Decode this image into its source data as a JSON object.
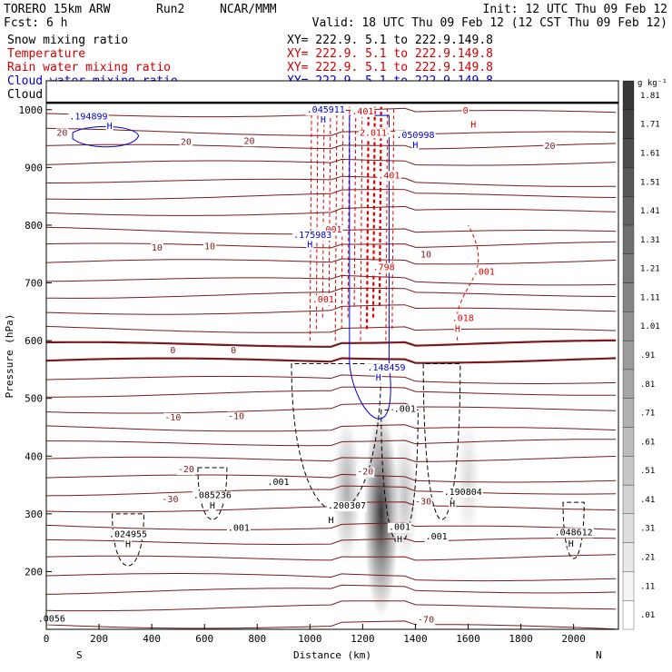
{
  "header": {
    "model": "TORERO  15km ARW",
    "run": "Run2",
    "org": "NCAR/MMM",
    "init": "Init: 12 UTC Thu 09 Feb 12",
    "fcst": "Fcst:    6 h",
    "valid": "Valid: 18 UTC Thu 09 Feb 12 (12 CST Thu 09 Feb 12)"
  },
  "fields": [
    {
      "name": "Snow mixing ratio",
      "color": "#000000"
    },
    {
      "name": "Temperature",
      "color": "#cc0000"
    },
    {
      "name": "Rain water mixing ratio",
      "color": "#cc0000"
    },
    {
      "name": "Cloud water mixing ratio",
      "color": "#0000cc"
    },
    {
      "name": "Cloud ice mixing ratio",
      "color": "#000000"
    }
  ],
  "xsec_label": "XY= 222.9.   5.1 to 222.9.149.8",
  "colorbar": {
    "unit": "g kg⁻¹",
    "labels": [
      ".01",
      ".11",
      ".21",
      ".31",
      ".41",
      ".51",
      ".61",
      ".71",
      ".81",
      ".91",
      "1.01",
      "1.11",
      "1.21",
      "1.31",
      "1.41",
      "1.51",
      "1.61",
      "1.71",
      "1.81"
    ]
  },
  "chart_data": {
    "type": "heatmap",
    "xlabel": "Distance (km)",
    "ylabel": "Pressure (hPa)",
    "xlim": [
      0,
      2170
    ],
    "ylim": [
      1050,
      100
    ],
    "x_ticks": [
      0,
      200,
      400,
      600,
      800,
      1000,
      1200,
      1400,
      1600,
      1800,
      2000
    ],
    "y_ticks": [
      200,
      300,
      400,
      500,
      600,
      700,
      800,
      900,
      1000
    ],
    "x_end_labels": {
      "left": "S",
      "right": "N"
    },
    "temperature_labels": [
      {
        "text": "-70",
        "x": 1440,
        "p": 112
      },
      {
        "text": "-30",
        "x": 470,
        "p": 320
      },
      {
        "text": "-30",
        "x": 1430,
        "p": 316
      },
      {
        "text": "-20",
        "x": 530,
        "p": 372
      },
      {
        "text": "-20",
        "x": 1210,
        "p": 368
      },
      {
        "text": "-10",
        "x": 480,
        "p": 462
      },
      {
        "text": "-10",
        "x": 720,
        "p": 464
      },
      {
        "text": "0",
        "x": 480,
        "p": 578
      },
      {
        "text": "0",
        "x": 710,
        "p": 578
      },
      {
        "text": "10",
        "x": 420,
        "p": 756
      },
      {
        "text": "10",
        "x": 620,
        "p": 758
      },
      {
        "text": "10",
        "x": 1440,
        "p": 744
      },
      {
        "text": "20",
        "x": 530,
        "p": 939
      },
      {
        "text": "20",
        "x": 770,
        "p": 941
      },
      {
        "text": "20",
        "x": 1910,
        "p": 932
      },
      {
        "text": "20",
        "x": 60,
        "p": 955
      }
    ],
    "snow_labels": [
      {
        "text": "H",
        "x": 310,
        "p": 242
      },
      {
        "text": ".024955",
        "x": 310,
        "p": 260
      },
      {
        "text": ".001",
        "x": 730,
        "p": 271
      },
      {
        "text": "H",
        "x": 630,
        "p": 309
      },
      {
        "text": ".085236",
        "x": 630,
        "p": 327
      },
      {
        "text": ".001",
        "x": 880,
        "p": 350
      },
      {
        "text": "H",
        "x": 1080,
        "p": 284
      },
      {
        "text": ".200307",
        "x": 1140,
        "p": 309
      },
      {
        "text": "H",
        "x": 1340,
        "p": 251
      },
      {
        "text": ".001",
        "x": 1340,
        "p": 272
      },
      {
        "text": ".001",
        "x": 1480,
        "p": 256
      },
      {
        "text": "H",
        "x": 1540,
        "p": 312
      },
      {
        "text": ".190804",
        "x": 1580,
        "p": 333
      },
      {
        "text": "H",
        "x": 1990,
        "p": 243
      },
      {
        "text": ".048612",
        "x": 2000,
        "p": 263
      },
      {
        "text": ".001",
        "x": 1360,
        "p": 477
      },
      {
        "text": ".0056",
        "x": 20,
        "p": 113
      }
    ],
    "rain_labels": [
      {
        "text": "H",
        "x": 1560,
        "p": 615
      },
      {
        "text": ".018",
        "x": 1580,
        "p": 634
      },
      {
        "text": ".001",
        "x": 1660,
        "p": 714
      },
      {
        "text": ".001",
        "x": 1050,
        "p": 666
      },
      {
        "text": ".001",
        "x": 1080,
        "p": 787
      },
      {
        "text": ".798",
        "x": 1280,
        "p": 722
      },
      {
        "text": ".401",
        "x": 1300,
        "p": 881
      },
      {
        "text": ".401",
        "x": 1260,
        "p": 957
      },
      {
        "text": "2.011",
        "x": 1240,
        "p": 955
      },
      {
        "text": ".401",
        "x": 1200,
        "p": 992
      },
      {
        "text": "H",
        "x": 1620,
        "p": 969
      },
      {
        "text": "0",
        "x": 1590,
        "p": 993
      }
    ],
    "cloud_water_labels": [
      {
        "text": "H",
        "x": 1260,
        "p": 531
      },
      {
        "text": ".148459",
        "x": 1290,
        "p": 548
      },
      {
        "text": "H",
        "x": 1000,
        "p": 761
      },
      {
        "text": ".175983",
        "x": 1010,
        "p": 778
      },
      {
        "text": "H",
        "x": 1400,
        "p": 934
      },
      {
        "text": ".050998",
        "x": 1400,
        "p": 951
      },
      {
        "text": "H",
        "x": 240,
        "p": 967
      },
      {
        "text": ".194899",
        "x": 160,
        "p": 983
      },
      {
        "text": "H",
        "x": 1050,
        "p": 978
      },
      {
        "text": ".045911",
        "x": 1060,
        "p": 995
      }
    ],
    "snow_shading": [
      {
        "x": 1270,
        "p": 300,
        "max": 1.81
      },
      {
        "x": 1140,
        "p": 340,
        "max": 0.71
      },
      {
        "x": 1360,
        "p": 330,
        "max": 0.51
      },
      {
        "x": 1600,
        "p": 360,
        "max": 0.31
      }
    ],
    "terrain_pressure": 1012
  }
}
